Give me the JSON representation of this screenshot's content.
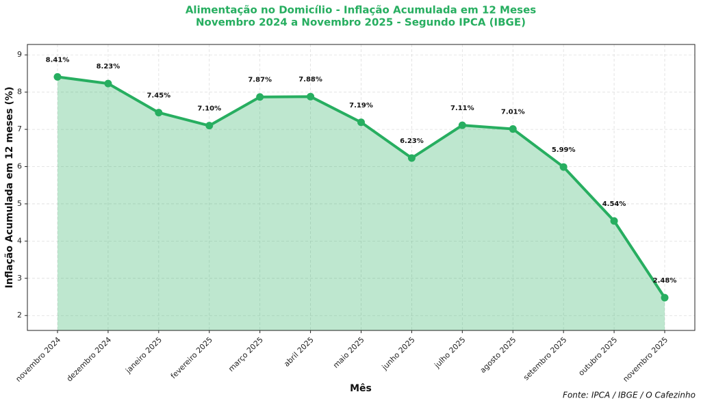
{
  "chart_data": {
    "type": "line",
    "title": "Alimentação no Domicílio - Inflação Acumulada em 12 Meses",
    "subtitle": "Novembro 2024 a Novembro 2025 - Segundo IPCA (IBGE)",
    "x_label": "Mês",
    "y_label": "Inflação Acumulada em 12 meses (%)",
    "source": "Fonte: IPCA / IBGE / O Cafezinho",
    "categories": [
      "novembro 2024",
      "dezembro 2024",
      "janeiro 2025",
      "fevereiro 2025",
      "março 2025",
      "abril 2025",
      "maio 2025",
      "junho 2025",
      "julho 2025",
      "agosto 2025",
      "setembro 2025",
      "outubro 2025",
      "novembro 2025"
    ],
    "values": [
      8.41,
      8.23,
      7.45,
      7.1,
      7.87,
      7.88,
      7.19,
      6.23,
      7.11,
      7.01,
      5.99,
      4.54,
      2.48
    ],
    "value_labels": [
      "8.41%",
      "8.23%",
      "7.45%",
      "7.10%",
      "7.87%",
      "7.88%",
      "7.19%",
      "6.23%",
      "7.11%",
      "7.01%",
      "5.99%",
      "4.54%",
      "2.48%"
    ],
    "color": "#27ae60",
    "area": true,
    "grid": true,
    "ylim": [
      1.6,
      9.28
    ],
    "yticks": [
      2,
      3,
      4,
      5,
      6,
      7,
      8,
      9
    ]
  }
}
